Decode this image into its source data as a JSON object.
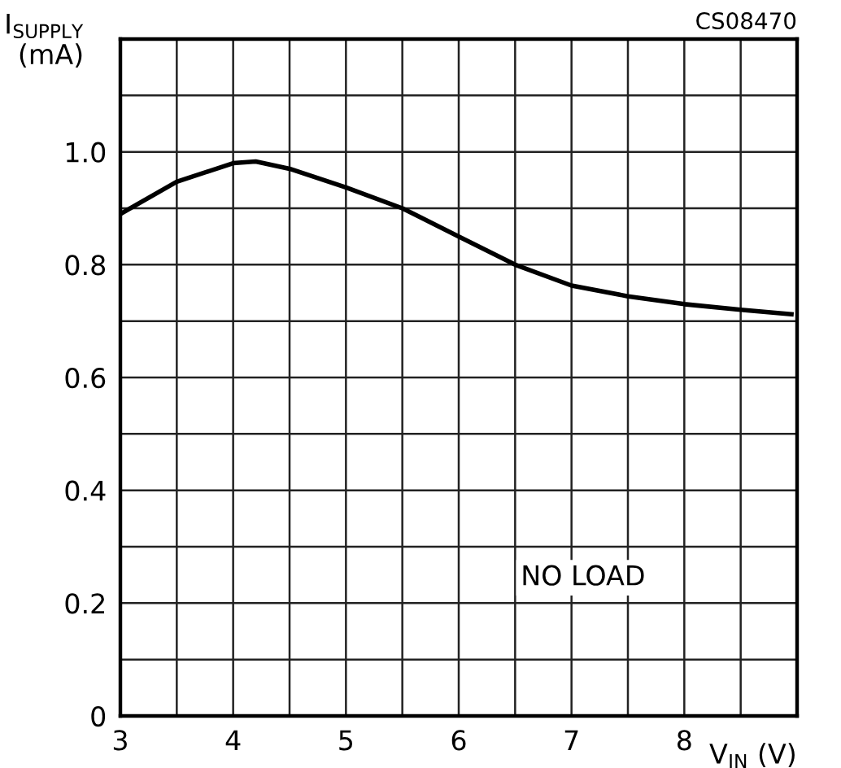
{
  "chart_data": {
    "type": "line",
    "xlabel": "V$_{IN}$ (V)",
    "ylabel": "I$_{SUPPLY}$\n(mA)",
    "annotations": [
      "CS08470",
      "NO LOAD"
    ],
    "x": [
      3,
      3.5,
      4,
      4.2,
      4.5,
      5,
      5.5,
      6,
      6.5,
      7,
      7.5,
      8,
      8.5,
      8.95
    ],
    "series": [
      {
        "color": "#000000",
        "values": [
          0.89,
          0.947,
          0.98,
          0.983,
          0.97,
          0.937,
          0.9,
          0.85,
          0.8,
          0.763,
          0.744,
          0.73,
          0.72,
          0.712
        ]
      }
    ],
    "xlim": [
      3,
      9
    ],
    "xticks": [
      3,
      {
        "value": 3.5,
        "label": null
      },
      4,
      {
        "value": 4.5,
        "label": null
      },
      5,
      {
        "value": 5.5,
        "label": null
      },
      6,
      {
        "value": 6.5,
        "label": null
      },
      7,
      {
        "value": 7.5,
        "label": null
      },
      8,
      {
        "value": 8.5,
        "label": null
      },
      {
        "value": 9,
        "label": null
      }
    ],
    "ylim": [
      0,
      1.2
    ],
    "yticks": [
      0,
      {
        "value": 0.1,
        "label": null
      },
      0.2,
      {
        "value": 0.3,
        "label": null
      },
      0.4,
      {
        "value": 0.5,
        "label": null
      },
      0.6,
      {
        "value": 0.7,
        "label": null
      },
      0.8,
      {
        "value": 0.9,
        "label": null
      },
      {
        "value": 1.0,
        "label": "1.0"
      },
      {
        "value": 1.1,
        "label": null
      },
      {
        "value": 1.2,
        "label": null
      }
    ],
    "grid": true,
    "marker": "none",
    "line_style": "solid",
    "legend": false
  }
}
